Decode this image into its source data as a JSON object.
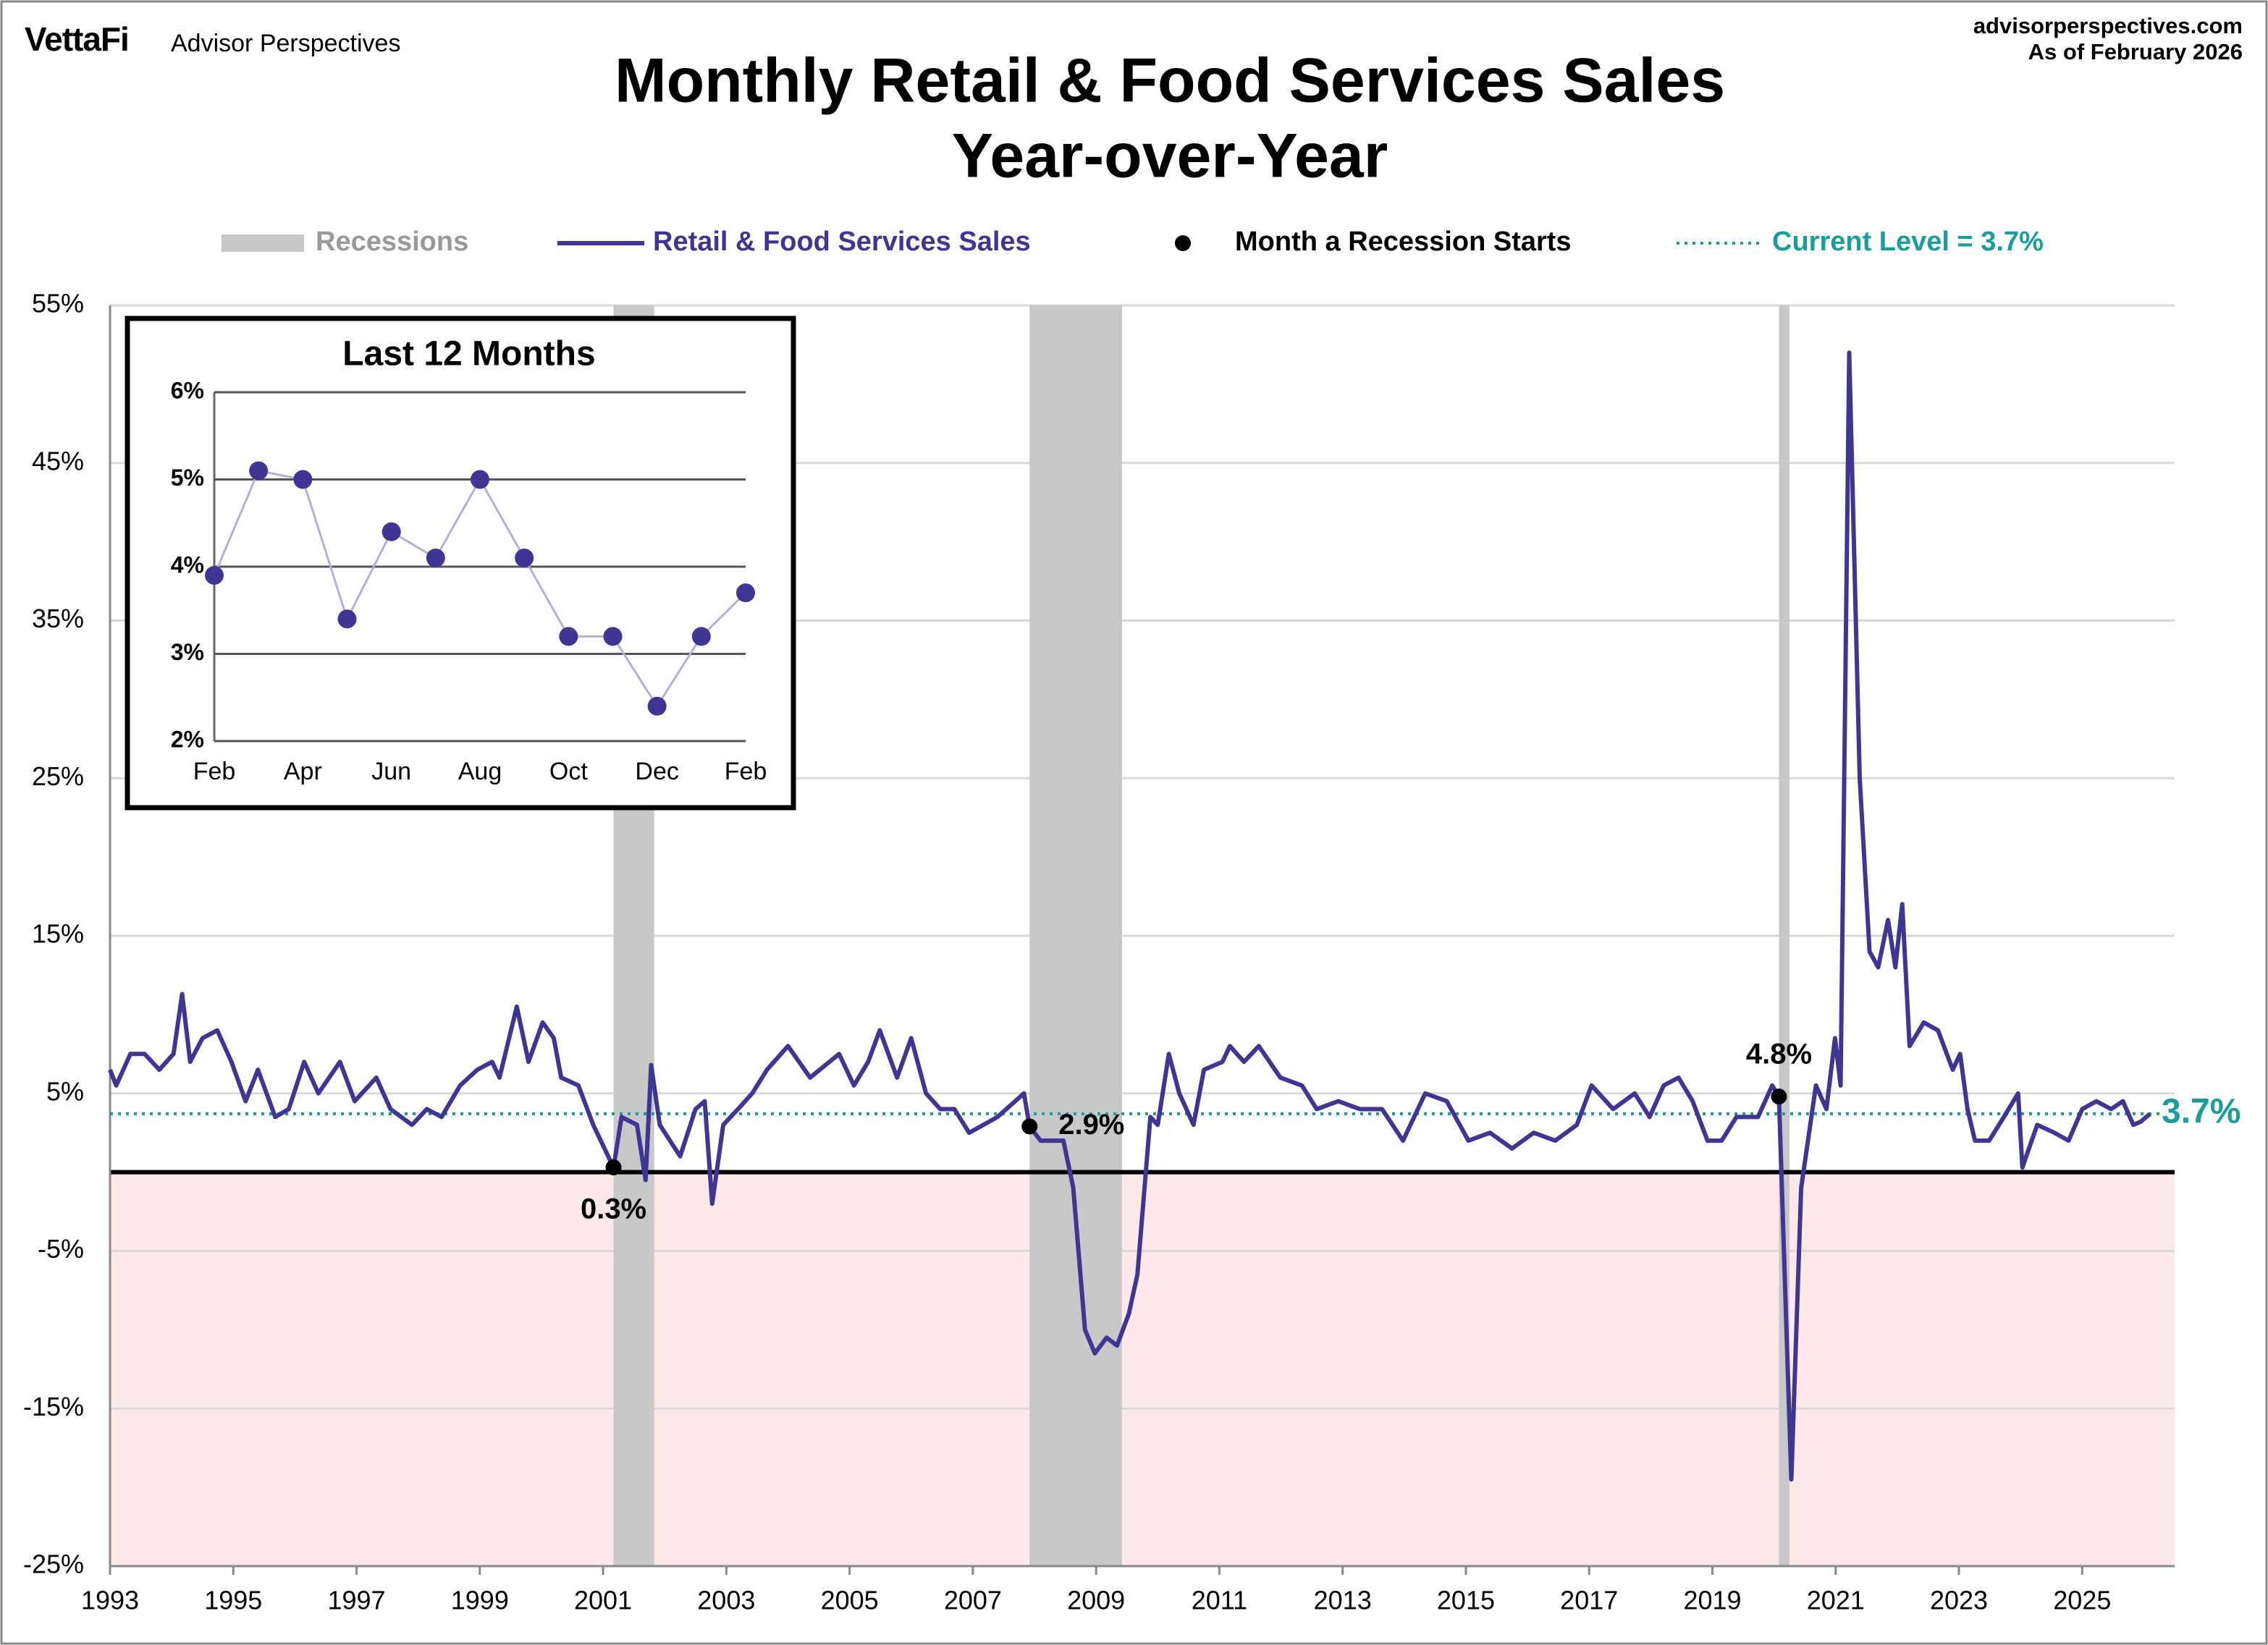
{
  "header": {
    "brand": "VettaFi",
    "brand_sub": "Advisor Perspectives",
    "site": "advisorperspectives.com",
    "as_of": "As of February 2026"
  },
  "chart_data": [
    {
      "type": "line",
      "title": "Monthly Retail & Food Services Sales",
      "subtitle": "Year-over-Year",
      "series": [
        {
          "name": "Retail & Food Services Sales",
          "color": "#3f3594",
          "x": [
            1993.0,
            1993.1,
            1993.33,
            1993.56,
            1993.8,
            1994.03,
            1994.17,
            1994.3,
            1994.5,
            1994.74,
            1994.97,
            1995.2,
            1995.4,
            1995.68,
            1995.9,
            1996.15,
            1996.38,
            1996.73,
            1996.97,
            1997.32,
            1997.55,
            1997.9,
            1998.14,
            1998.38,
            1998.68,
            1998.96,
            1999.2,
            1999.32,
            1999.6,
            1999.79,
            2000.02,
            2000.2,
            2000.32,
            2000.6,
            2000.84,
            2001.17,
            2001.3,
            2001.55,
            2001.69,
            2001.78,
            2001.92,
            2002.25,
            2002.5,
            2002.65,
            2002.77,
            2002.95,
            2003.19,
            2003.42,
            2003.66,
            2004.0,
            2004.36,
            2004.83,
            2005.07,
            2005.3,
            2005.49,
            2005.77,
            2006.0,
            2006.24,
            2006.47,
            2006.7,
            2006.94,
            2007.4,
            2007.83,
            2007.92,
            2008.1,
            2008.47,
            2008.63,
            2008.82,
            2008.98,
            2009.17,
            2009.34,
            2009.53,
            2009.67,
            2009.88,
            2010.0,
            2010.18,
            2010.35,
            2010.58,
            2010.75,
            2011.05,
            2011.17,
            2011.4,
            2011.64,
            2011.99,
            2012.34,
            2012.58,
            2012.93,
            2013.28,
            2013.64,
            2013.98,
            2014.34,
            2014.69,
            2015.04,
            2015.39,
            2015.75,
            2016.1,
            2016.45,
            2016.8,
            2017.04,
            2017.39,
            2017.74,
            2017.98,
            2018.21,
            2018.45,
            2018.68,
            2018.92,
            2019.15,
            2019.39,
            2019.74,
            2019.97,
            2020.08,
            2020.28,
            2020.44,
            2020.68,
            2020.85,
            2020.99,
            2021.08,
            2021.22,
            2021.39,
            2021.55,
            2021.69,
            2021.85,
            2021.97,
            2022.08,
            2022.2,
            2022.43,
            2022.66,
            2022.9,
            2023.02,
            2023.14,
            2023.26,
            2023.49,
            2023.73,
            2023.96,
            2024.03,
            2024.27,
            2024.55,
            2024.78,
            2025.0,
            2025.23,
            2025.47,
            2025.66,
            2025.83,
            2025.95,
            2026.1
          ],
          "values": [
            6.5,
            5.5,
            7.5,
            7.5,
            6.5,
            7.5,
            11.3,
            7,
            8.5,
            9,
            7,
            4.5,
            6.5,
            3.5,
            4,
            7,
            5,
            7,
            4.5,
            6,
            4,
            3,
            4,
            3.5,
            5.5,
            6.5,
            7,
            6,
            10.5,
            7,
            9.5,
            8.5,
            6,
            5.5,
            3,
            0.3,
            3.5,
            3,
            -0.5,
            6.8,
            3,
            1,
            4,
            4.5,
            -2,
            3,
            4,
            5,
            6.5,
            8,
            6,
            7.5,
            5.5,
            7,
            9,
            6,
            8.5,
            5,
            4,
            4,
            2.5,
            3.5,
            5,
            2.9,
            2,
            2,
            -1,
            -10,
            -11.5,
            -10.5,
            -11,
            -9,
            -6.5,
            3.5,
            3,
            7.5,
            5,
            3,
            6.5,
            7,
            8,
            7,
            8,
            6,
            5.5,
            4,
            4.5,
            4,
            4,
            2,
            5,
            4.5,
            2,
            2.5,
            1.5,
            2.5,
            2,
            3,
            5.5,
            4,
            5,
            3.5,
            5.5,
            6,
            4.5,
            2,
            2,
            3.5,
            3.5,
            5.5,
            4.8,
            -19.5,
            -1,
            5.5,
            4,
            8.5,
            5.5,
            52,
            25,
            14,
            13,
            16,
            13,
            17,
            8,
            9.5,
            9,
            6.5,
            7.5,
            4,
            2,
            2,
            3.5,
            5,
            0.3,
            3,
            2.5,
            2,
            4,
            4.5,
            4,
            4.5,
            3,
            3.2,
            3.7
          ]
        }
      ],
      "recessions": {
        "name": "Recessions",
        "color": "#c8c8c8",
        "spans": [
          [
            2001.17,
            2001.83
          ],
          [
            2007.92,
            2009.42
          ],
          [
            2020.08,
            2020.25
          ]
        ]
      },
      "recession_starts": {
        "name": "Month a Recession Starts",
        "color": "#000000",
        "x": [
          2001.17,
          2007.92,
          2020.08
        ],
        "values": [
          0.3,
          2.9,
          4.8
        ],
        "value_labels": [
          "0.3%",
          "2.9%",
          "4.8%"
        ]
      },
      "current_level": {
        "name": "Current Level = 3.7%",
        "value": 3.7,
        "value_label": "3.7%",
        "color": "#1a9e9a"
      },
      "negative_fill": "#fde9ea",
      "xlim": [
        1993,
        2026.5
      ],
      "xticks": [
        1993,
        1995,
        1997,
        1999,
        2001,
        2003,
        2005,
        2007,
        2009,
        2011,
        2013,
        2015,
        2017,
        2019,
        2021,
        2023,
        2025
      ],
      "ylim": [
        -25,
        55
      ],
      "yticks": [
        {
          "value": -25,
          "label": "-25%"
        },
        {
          "value": -15,
          "label": "-15%"
        },
        {
          "value": -5,
          "label": "-5%"
        },
        {
          "value": 5,
          "label": "5%"
        },
        {
          "value": 15,
          "label": "15%"
        },
        {
          "value": 25,
          "label": "25%"
        },
        {
          "value": 35,
          "label": "35%"
        },
        {
          "value": 45,
          "label": "45%"
        },
        {
          "value": 55,
          "label": "55%"
        }
      ],
      "grid": true
    },
    {
      "type": "line",
      "title": "Last 12 Months",
      "categories": [
        "Feb",
        null,
        "Apr",
        null,
        "Jun",
        null,
        "Aug",
        null,
        "Oct",
        null,
        "Dec",
        null,
        "Feb"
      ],
      "values": [
        3.9,
        5.1,
        5.0,
        3.4,
        4.4,
        4.1,
        5.0,
        4.1,
        3.2,
        3.2,
        2.4,
        3.2,
        3.7
      ],
      "color": "#3f3594",
      "line_color": "#b3afd6",
      "ylim": [
        2,
        6
      ],
      "yticks": [
        {
          "value": 2,
          "label": "2%"
        },
        {
          "value": 3,
          "label": "3%"
        },
        {
          "value": 4,
          "label": "4%"
        },
        {
          "value": 5,
          "label": "5%"
        },
        {
          "value": 6,
          "label": "6%"
        }
      ],
      "grid": true
    }
  ]
}
